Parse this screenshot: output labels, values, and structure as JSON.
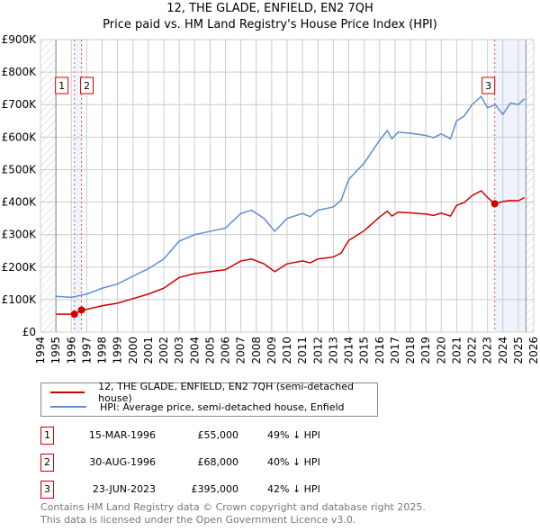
{
  "title": "12, THE GLADE, ENFIELD, EN2 7QH",
  "subtitle": "Price paid vs. HM Land Registry's House Price Index (HPI)",
  "chart_data": {
    "type": "line",
    "ylim": [
      0,
      900000
    ],
    "xlim": [
      1994,
      2026
    ],
    "yticks": [
      "£0",
      "£100K",
      "£200K",
      "£300K",
      "£400K",
      "£500K",
      "£600K",
      "£700K",
      "£800K",
      "£900K"
    ],
    "xticks": [
      "1994",
      "1995",
      "1996",
      "1997",
      "1998",
      "1999",
      "2000",
      "2001",
      "2002",
      "2003",
      "2004",
      "2005",
      "2006",
      "2007",
      "2008",
      "2009",
      "2010",
      "2011",
      "2012",
      "2013",
      "2014",
      "2015",
      "2016",
      "2017",
      "2018",
      "2019",
      "2020",
      "2021",
      "2022",
      "2023",
      "2024",
      "2025",
      "2026"
    ],
    "series": [
      {
        "name": "12, THE GLADE, ENFIELD, EN2 7QH (semi-detached house)",
        "color": "#cc0000",
        "x": [
          1995,
          1996.2,
          1996.66,
          1997,
          1998,
          1999,
          2000,
          2001,
          2002,
          2003,
          2004,
          2005,
          2006,
          2007,
          2007.7,
          2008.5,
          2009.2,
          2010,
          2011,
          2011.5,
          2012,
          2013,
          2013.5,
          2014,
          2015,
          2016,
          2016.5,
          2016.8,
          2017.2,
          2018,
          2019,
          2019.5,
          2020,
          2020.6,
          2021,
          2021.5,
          2022,
          2022.6,
          2023,
          2023.47,
          2024,
          2024.5,
          2025,
          2025.4
        ],
        "y": [
          55000,
          55000,
          68000,
          70000,
          81000,
          89000,
          103000,
          117000,
          135000,
          168000,
          180000,
          186000,
          192000,
          219000,
          225000,
          210000,
          186000,
          210000,
          219000,
          213000,
          225000,
          231000,
          243000,
          282000,
          312000,
          354000,
          372000,
          357000,
          369000,
          367000,
          363000,
          359000,
          366000,
          357000,
          390000,
          399000,
          420000,
          435000,
          414000,
          395000,
          402000,
          405000,
          404000,
          414000
        ]
      },
      {
        "name": "HPI: Average price, semi-detached house, Enfield",
        "color": "#5b8fd4",
        "x": [
          1995,
          1996,
          1997,
          1998,
          1999,
          2000,
          2001,
          2002,
          2003,
          2004,
          2005,
          2006,
          2007,
          2007.7,
          2008.5,
          2009.2,
          2010,
          2011,
          2011.5,
          2012,
          2013,
          2013.5,
          2014,
          2015,
          2016,
          2016.5,
          2016.8,
          2017.2,
          2018,
          2019,
          2019.5,
          2020,
          2020.6,
          2021,
          2021.5,
          2022,
          2022.6,
          2023,
          2023.5,
          2024,
          2024.5,
          2025,
          2025.4
        ],
        "y": [
          110000,
          107000,
          117000,
          135000,
          148000,
          172000,
          195000,
          225000,
          280000,
          300000,
          310000,
          320000,
          365000,
          375000,
          350000,
          310000,
          350000,
          365000,
          355000,
          375000,
          385000,
          405000,
          470000,
          520000,
          590000,
          620000,
          595000,
          615000,
          612000,
          605000,
          598000,
          610000,
          595000,
          650000,
          665000,
          700000,
          725000,
          690000,
          700000,
          670000,
          705000,
          700000,
          718000
        ]
      }
    ],
    "sales": [
      {
        "label": "1",
        "date": "15-MAR-1996",
        "price": "£55,000",
        "hpi": "49% ↓ HPI",
        "x": 1996.2,
        "y": 55000
      },
      {
        "label": "2",
        "date": "30-AUG-1996",
        "price": "£68,000",
        "hpi": "40% ↓ HPI",
        "x": 1996.66,
        "y": 68000
      },
      {
        "label": "3",
        "date": "23-JUN-2023",
        "price": "£395,000",
        "hpi": "42% ↓ HPI",
        "x": 2023.47,
        "y": 395000
      }
    ]
  },
  "footer": [
    "Contains HM Land Registry data © Crown copyright and database right 2025.",
    "This data is licensed under the Open Government Licence v3.0."
  ]
}
